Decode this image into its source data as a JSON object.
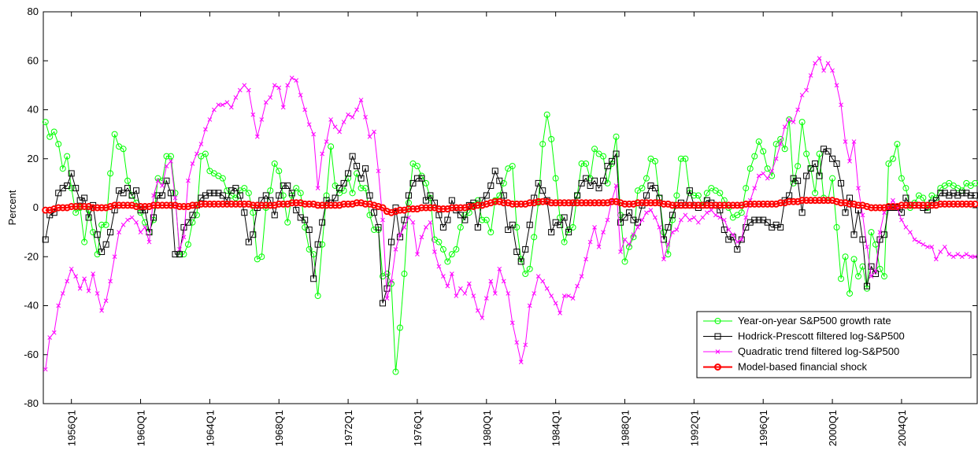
{
  "chart_data": {
    "type": "line",
    "ylabel": "Percent",
    "legend": "lower right",
    "grid": false,
    "ylim": [
      -80,
      80
    ],
    "yticks": [
      -80,
      -60,
      -40,
      -20,
      0,
      20,
      40,
      60,
      80
    ],
    "categories": [
      null,
      null,
      null,
      null,
      null,
      null,
      "1956Q1",
      null,
      null,
      null,
      null,
      null,
      null,
      null,
      null,
      null,
      null,
      null,
      null,
      null,
      null,
      null,
      "1960Q1",
      null,
      null,
      null,
      null,
      null,
      null,
      null,
      null,
      null,
      null,
      null,
      null,
      null,
      null,
      null,
      "1964Q1",
      null,
      null,
      null,
      null,
      null,
      null,
      null,
      null,
      null,
      null,
      null,
      null,
      null,
      null,
      null,
      "1968Q1",
      null,
      null,
      null,
      null,
      null,
      null,
      null,
      null,
      null,
      null,
      null,
      null,
      null,
      null,
      null,
      "1972Q1",
      null,
      null,
      null,
      null,
      null,
      null,
      null,
      null,
      null,
      null,
      null,
      null,
      null,
      null,
      null,
      "1976Q1",
      null,
      null,
      null,
      null,
      null,
      null,
      null,
      null,
      null,
      null,
      null,
      null,
      null,
      null,
      null,
      "1980Q1",
      null,
      null,
      null,
      null,
      null,
      null,
      null,
      null,
      null,
      null,
      null,
      null,
      null,
      null,
      null,
      "1984Q1",
      null,
      null,
      null,
      null,
      null,
      null,
      null,
      null,
      null,
      null,
      null,
      null,
      null,
      null,
      null,
      "1988Q1",
      null,
      null,
      null,
      null,
      null,
      null,
      null,
      null,
      null,
      null,
      null,
      null,
      null,
      null,
      null,
      "1992Q1",
      null,
      null,
      null,
      null,
      null,
      null,
      null,
      null,
      null,
      null,
      null,
      null,
      null,
      null,
      null,
      "1996Q1",
      null,
      null,
      null,
      null,
      null,
      null,
      null,
      null,
      null,
      null,
      null,
      null,
      null,
      null,
      null,
      "2000Q1",
      null,
      null,
      null,
      null,
      null,
      null,
      null,
      null,
      null,
      null,
      null,
      null,
      null,
      null,
      null,
      "2004Q1",
      null,
      null,
      null,
      null,
      null,
      null,
      null,
      null,
      null,
      null,
      null,
      null,
      null,
      null,
      null,
      null,
      null
    ],
    "series": [
      {
        "name": "Year-on-year S&P500 growth rate",
        "color": "#00ff00",
        "marker": "circle",
        "values": [
          35,
          29,
          31,
          26,
          16,
          21,
          8,
          -2,
          0,
          -14,
          -1,
          -10,
          -19,
          -7,
          -7,
          14,
          30,
          25,
          24,
          11,
          5,
          2,
          -2,
          -6,
          -10,
          -5,
          12,
          11,
          21,
          21,
          6,
          -19,
          -19,
          -15,
          -6,
          -3,
          21,
          22,
          15,
          14,
          13,
          12,
          7,
          5,
          4,
          7,
          8,
          6,
          -2,
          -21,
          -20,
          0,
          7,
          18,
          15,
          5,
          -6,
          5,
          8,
          6,
          -8,
          -17,
          -19,
          -36,
          -15,
          5,
          25,
          9,
          6,
          7,
          12,
          6,
          14,
          8,
          8,
          -3,
          -9,
          -9,
          -28,
          -27,
          -31,
          -67,
          -49,
          -27,
          2,
          18,
          17,
          13,
          10,
          4,
          -13,
          -14,
          -17,
          -22,
          -19,
          -17,
          -8,
          -3,
          -2,
          1,
          3,
          -5,
          -5,
          -10,
          3,
          5,
          10,
          16,
          17,
          -8,
          -21,
          -27,
          -25,
          -12,
          2,
          26,
          38,
          28,
          12,
          -4,
          -14,
          -9,
          -8,
          5,
          18,
          18,
          12,
          24,
          22,
          21,
          10,
          18,
          29,
          -3,
          -22,
          -16,
          -12,
          7,
          8,
          12,
          20,
          19,
          4,
          -10,
          -19,
          -5,
          5,
          20,
          20,
          6,
          5,
          5,
          1,
          6,
          8,
          7,
          6,
          3,
          0,
          -4,
          -3,
          -2,
          8,
          16,
          21,
          27,
          23,
          16,
          13,
          26,
          28,
          24,
          36,
          10,
          17,
          35,
          22,
          16,
          6,
          22,
          4,
          3,
          12,
          -8,
          -29,
          -20,
          -35,
          -21,
          -28,
          -24,
          -33,
          -10,
          -15,
          -25,
          -28,
          18,
          20,
          26,
          12,
          8,
          0,
          2,
          5,
          4,
          0,
          5,
          4,
          8,
          9,
          10,
          9,
          8,
          7,
          10,
          9,
          10
        ]
      },
      {
        "name": "Hodrick-Prescott filtered log-S&P500",
        "color": "#000000",
        "marker": "square",
        "values": [
          -13,
          -3,
          -2,
          6,
          8,
          9,
          14,
          8,
          3,
          4,
          -4,
          1,
          -11,
          -18,
          -15,
          -10,
          -1,
          7,
          6,
          8,
          5,
          7,
          -1,
          -1,
          -10,
          -4,
          5,
          5,
          11,
          6,
          -19,
          -19,
          -8,
          -6,
          -3,
          1,
          4,
          5,
          6,
          6,
          6,
          5,
          3,
          7,
          8,
          5,
          -2,
          -14,
          -11,
          0,
          3,
          5,
          3,
          -3,
          5,
          9,
          9,
          6,
          -1,
          -4,
          -5,
          -9,
          -29,
          -15,
          -6,
          3,
          2,
          4,
          8,
          10,
          14,
          21,
          17,
          12,
          16,
          5,
          -2,
          -8,
          -39,
          -33,
          -14,
          0,
          -12,
          -5,
          5,
          10,
          12,
          12,
          3,
          5,
          2,
          -3,
          -8,
          -5,
          3,
          -1,
          -3,
          -5,
          1,
          2,
          -8,
          3,
          5,
          9,
          15,
          11,
          5,
          -9,
          -7,
          -18,
          -22,
          -17,
          -7,
          4,
          10,
          7,
          3,
          -10,
          -6,
          -7,
          -4,
          -10,
          2,
          5,
          10,
          12,
          9,
          11,
          8,
          11,
          17,
          19,
          22,
          -6,
          -4,
          -2,
          -5,
          -6,
          1,
          5,
          9,
          8,
          4,
          -13,
          -8,
          -3,
          1,
          2,
          1,
          7,
          1,
          0,
          1,
          3,
          2,
          1,
          -1,
          -9,
          -13,
          -12,
          -17,
          -13,
          -8,
          -6,
          -5,
          -5,
          -5,
          -6,
          -8,
          -7,
          -8,
          3,
          5,
          12,
          11,
          -2,
          13,
          16,
          18,
          13,
          24,
          23,
          20,
          18,
          10,
          -2,
          4,
          -11,
          -1,
          -13,
          -32,
          -24,
          -27,
          -13,
          -11,
          0,
          0,
          0,
          -2,
          4,
          1,
          1,
          1,
          0,
          -1,
          2,
          3,
          6,
          6,
          5,
          6,
          5,
          6,
          6,
          5,
          5
        ]
      },
      {
        "name": "Quadratic trend filtered log-S&P500",
        "color": "#ff00ff",
        "marker": "x",
        "values": [
          -66,
          -53,
          -51,
          -40,
          -35,
          -30,
          -25,
          -28,
          -33,
          -29,
          -34,
          -27,
          -35,
          -42,
          -38,
          -30,
          -20,
          -10,
          -7,
          -5,
          -4,
          -6,
          -10,
          -8,
          -14,
          5,
          11,
          9,
          17,
          19,
          4,
          -17,
          -12,
          11,
          18,
          22,
          26,
          32,
          36,
          40,
          42,
          42,
          43,
          41,
          45,
          48,
          50,
          48,
          38,
          29,
          36,
          43,
          45,
          50,
          49,
          41,
          50,
          53,
          52,
          46,
          40,
          34,
          30,
          8,
          22,
          27,
          36,
          33,
          31,
          35,
          38,
          37,
          40,
          44,
          37,
          29,
          31,
          15,
          -5,
          -37,
          -30,
          -17,
          -11,
          -8,
          -4,
          -6,
          -19,
          -12,
          -8,
          -6,
          -18,
          -24,
          -28,
          -32,
          -27,
          -36,
          -33,
          -35,
          -31,
          -36,
          -42,
          -45,
          -37,
          -30,
          -35,
          -25,
          -30,
          -35,
          -47,
          -55,
          -63,
          -56,
          -40,
          -35,
          -28,
          -30,
          -33,
          -36,
          -39,
          -43,
          -36,
          -36,
          -37,
          -32,
          -28,
          -21,
          -14,
          -8,
          -16,
          -10,
          -5,
          3,
          9,
          -18,
          -13,
          -15,
          -11,
          -8,
          -5,
          -2,
          -1,
          -4,
          -8,
          -21,
          -15,
          -10,
          -9,
          -5,
          -3,
          -5,
          -4,
          -6,
          -4,
          -2,
          -1,
          -3,
          -4,
          -5,
          -9,
          -11,
          -14,
          -13,
          -4,
          3,
          8,
          13,
          14,
          12,
          15,
          20,
          26,
          33,
          36,
          35,
          40,
          46,
          48,
          54,
          59,
          61,
          56,
          59,
          56,
          50,
          42,
          27,
          19,
          27,
          8,
          -3,
          -16,
          -28,
          -26,
          -10,
          -2,
          0,
          3,
          0,
          -5,
          -8,
          -10,
          -13,
          -14,
          -15,
          -16,
          -16,
          -21,
          -18,
          -16,
          -19,
          -20,
          -19,
          -20,
          -19,
          -20,
          -20
        ]
      },
      {
        "name": "Model-based financial shock",
        "color": "#ff0000",
        "marker": "bigcircle",
        "values": [
          -1,
          -1,
          -0.5,
          0,
          0,
          0,
          0.5,
          0.5,
          0.5,
          0.5,
          0.5,
          0,
          0,
          0,
          0,
          0.5,
          1,
          1,
          1,
          1,
          1,
          0.5,
          0.5,
          0.5,
          0.5,
          1,
          1,
          1,
          1,
          1,
          1,
          0.5,
          0.5,
          0.5,
          1,
          1,
          1.5,
          1.5,
          1.5,
          1.5,
          1.5,
          1.5,
          1.5,
          1.5,
          1.5,
          1.5,
          1.5,
          1.5,
          1,
          1,
          1,
          1,
          1,
          1,
          1.5,
          1.5,
          1.5,
          2,
          2,
          2,
          1.5,
          1.5,
          1.5,
          1,
          1,
          1,
          1,
          1,
          1,
          1.5,
          1.5,
          1.5,
          2,
          2,
          1.5,
          1.5,
          1,
          0.5,
          0,
          -1.5,
          -2,
          -1.5,
          -1,
          -1,
          -0.5,
          -0.5,
          -0.5,
          0,
          0,
          0,
          0,
          -0.5,
          -0.5,
          -0.5,
          0,
          0,
          0,
          0,
          0.5,
          0.5,
          1,
          1,
          1.5,
          2,
          2.5,
          2.5,
          2,
          2,
          1.5,
          1.5,
          1.5,
          1.5,
          2,
          2,
          2.5,
          2.5,
          2.5,
          2,
          2,
          2,
          2,
          2,
          2,
          2,
          2,
          2,
          2,
          2,
          2,
          2,
          2,
          2.5,
          2.5,
          2,
          1.5,
          1.5,
          1.5,
          2,
          2,
          2,
          2,
          2,
          2,
          1.5,
          1.5,
          1,
          1,
          1,
          1,
          1,
          1,
          1,
          1,
          1,
          1,
          1,
          1,
          1,
          1,
          1,
          1,
          1,
          1.5,
          1.5,
          1.5,
          1.5,
          1.5,
          1.5,
          1.5,
          1.5,
          2,
          2,
          2.5,
          2.5,
          2.5,
          3,
          3,
          3,
          3,
          3,
          3,
          3,
          3,
          2.5,
          2,
          2,
          1.5,
          1.5,
          1,
          1,
          0.5,
          0,
          0,
          0,
          0,
          0.5,
          0.5,
          0.5,
          1,
          1,
          1,
          1,
          1,
          1,
          1,
          1,
          1,
          1.5,
          1.5,
          1.5,
          1.5,
          1.5,
          1.5,
          1.5,
          1.5,
          1.5
        ]
      }
    ]
  }
}
